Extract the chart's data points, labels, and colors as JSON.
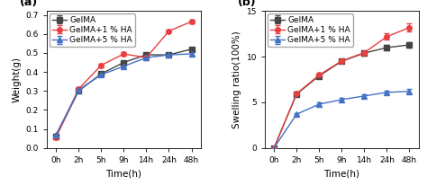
{
  "time_labels": [
    "0h",
    "2h",
    "5h",
    "9h",
    "14h",
    "24h",
    "48h"
  ],
  "time_indices": [
    0,
    1,
    2,
    3,
    4,
    5,
    6
  ],
  "panel_a": {
    "xlabel": "Time(h)",
    "ylabel": "Weight(g)",
    "ylim": [
      0.0,
      0.72
    ],
    "yticks": [
      0.0,
      0.1,
      0.2,
      0.3,
      0.4,
      0.5,
      0.6,
      0.7
    ],
    "yticklabels": [
      "0.0",
      "0.1",
      "0.2",
      "0.3",
      "0.4",
      "0.5",
      "0.6",
      "0.7"
    ],
    "series": {
      "GelMA": {
        "color": "#444444",
        "marker": "s",
        "values": [
          0.06,
          0.3,
          0.39,
          0.45,
          0.49,
          0.49,
          0.52
        ],
        "errors": [
          0.004,
          0.007,
          0.007,
          0.007,
          0.009,
          0.01,
          0.009
        ]
      },
      "GelMA+1 % HA": {
        "color": "#e84040",
        "marker": "o",
        "values": [
          0.055,
          0.31,
          0.435,
          0.495,
          0.475,
          0.615,
          0.665
        ],
        "errors": [
          0.004,
          0.008,
          0.009,
          0.009,
          0.011,
          0.009,
          0.011
        ]
      },
      "GelMA+5 % HA": {
        "color": "#4472c4",
        "marker": "^",
        "values": [
          0.07,
          0.305,
          0.385,
          0.43,
          0.475,
          0.49,
          0.495
        ],
        "errors": [
          0.004,
          0.007,
          0.007,
          0.008,
          0.009,
          0.009,
          0.009
        ]
      }
    }
  },
  "panel_b": {
    "xlabel": "Time(h)",
    "ylabel": "Swelling ratio(100%)",
    "ylim": [
      0,
      15
    ],
    "yticks": [
      0,
      5,
      10,
      15
    ],
    "yticklabels": [
      "0",
      "5",
      "10",
      "15"
    ],
    "series": {
      "GelMA": {
        "color": "#444444",
        "marker": "s",
        "values": [
          0.0,
          5.9,
          7.9,
          9.5,
          10.4,
          11.0,
          11.3
        ],
        "errors": [
          0.0,
          0.15,
          0.18,
          0.2,
          0.25,
          0.25,
          0.3
        ]
      },
      "GelMA+1 % HA": {
        "color": "#e84040",
        "marker": "o",
        "values": [
          0.0,
          5.95,
          8.0,
          9.55,
          10.45,
          12.2,
          13.2
        ],
        "errors": [
          0.0,
          0.15,
          0.18,
          0.22,
          0.28,
          0.35,
          0.45
        ]
      },
      "GelMA+5 % HA": {
        "color": "#4472c4",
        "marker": "^",
        "values": [
          0.0,
          3.7,
          4.8,
          5.3,
          5.7,
          6.1,
          6.2
        ],
        "errors": [
          0.0,
          0.12,
          0.15,
          0.18,
          0.2,
          0.22,
          0.25
        ]
      }
    }
  },
  "legend_order": [
    "GelMA",
    "GelMA+1 % HA",
    "GelMA+5 % HA"
  ],
  "markersize": 4,
  "linewidth": 1.0,
  "fontsize_label": 7.5,
  "fontsize_tick": 6.5,
  "fontsize_legend": 6.5,
  "fontsize_panel": 9
}
